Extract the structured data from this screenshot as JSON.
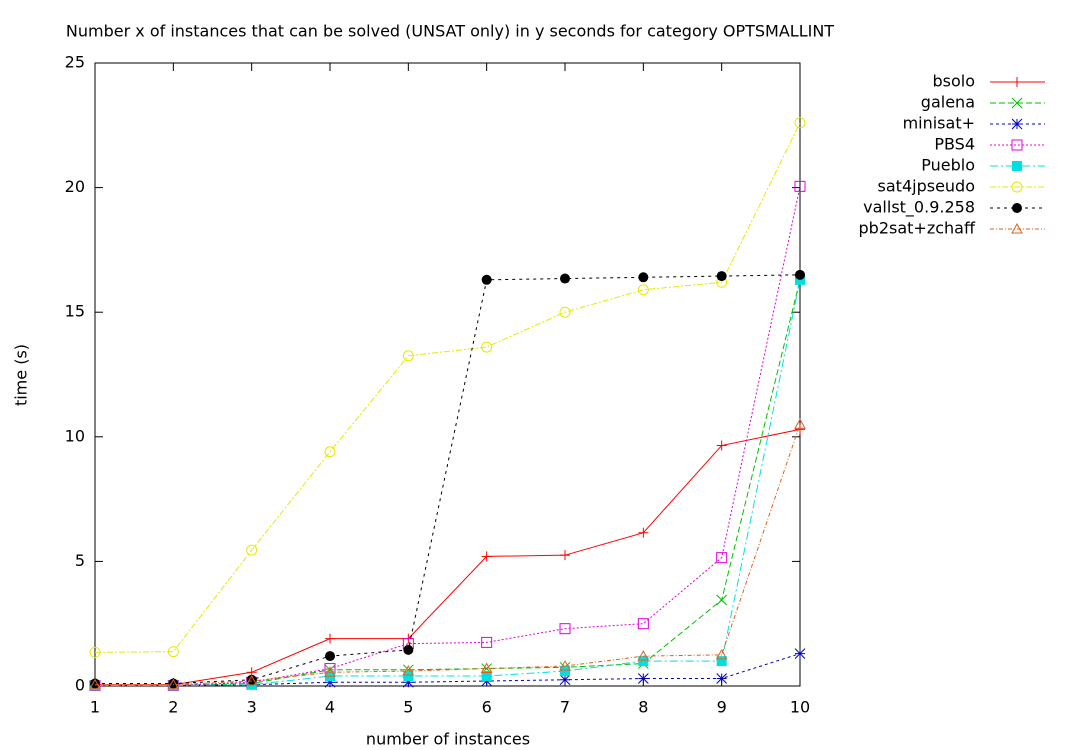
{
  "chart_data": {
    "type": "line",
    "title": "Number x of instances that can be solved (UNSAT only) in y seconds for category OPTSMALLINT",
    "x_label": "number of instances",
    "y_label": "time (s)",
    "x": [
      1,
      2,
      3,
      4,
      5,
      6,
      7,
      8,
      9,
      10
    ],
    "xlim": [
      1,
      10
    ],
    "xticks": [
      1,
      2,
      3,
      4,
      5,
      6,
      7,
      8,
      9,
      10
    ],
    "ylim": [
      0,
      25
    ],
    "yticks": [
      0,
      5,
      10,
      15,
      20,
      25
    ],
    "legend": "top-right",
    "series": [
      {
        "name": "bsolo",
        "color": "#ff0000",
        "marker": "plus",
        "values": [
          0.05,
          0.05,
          0.55,
          1.9,
          1.9,
          5.2,
          5.25,
          6.15,
          9.65,
          10.3
        ]
      },
      {
        "name": "galena",
        "color": "#00c000",
        "marker": "cross",
        "values": [
          0.02,
          0.02,
          0.1,
          0.65,
          0.65,
          0.7,
          0.75,
          0.9,
          3.45,
          16.3
        ]
      },
      {
        "name": "minisat+",
        "color": "#0000c0",
        "marker": "star",
        "values": [
          0.02,
          0.02,
          0.05,
          0.15,
          0.15,
          0.2,
          0.25,
          0.3,
          0.3,
          1.3
        ]
      },
      {
        "name": "PBS4",
        "color": "#e000e0",
        "marker": "square",
        "values": [
          0.02,
          0.02,
          0.15,
          0.7,
          1.7,
          1.75,
          2.3,
          2.5,
          5.15,
          20.05
        ]
      },
      {
        "name": "Pueblo",
        "color": "#00e0e0",
        "marker": "filled-square",
        "values": [
          0.02,
          0.02,
          0.05,
          0.4,
          0.4,
          0.4,
          0.6,
          1.0,
          1.0,
          16.3
        ]
      },
      {
        "name": "sat4jpseudo",
        "color": "#e8e800",
        "marker": "circle",
        "values": [
          1.35,
          1.38,
          5.45,
          9.4,
          13.25,
          13.6,
          15.0,
          15.9,
          16.2,
          22.6
        ]
      },
      {
        "name": "vallst_0.9.258",
        "color": "#000000",
        "marker": "filled-circle",
        "values": [
          0.1,
          0.1,
          0.25,
          1.2,
          1.45,
          16.3,
          16.35,
          16.4,
          16.45,
          16.5
        ]
      },
      {
        "name": "pb2sat+zchaff",
        "color": "#e06020",
        "marker": "triangle",
        "values": [
          0.05,
          0.05,
          0.2,
          0.55,
          0.6,
          0.7,
          0.8,
          1.2,
          1.25,
          10.5
        ]
      }
    ]
  }
}
